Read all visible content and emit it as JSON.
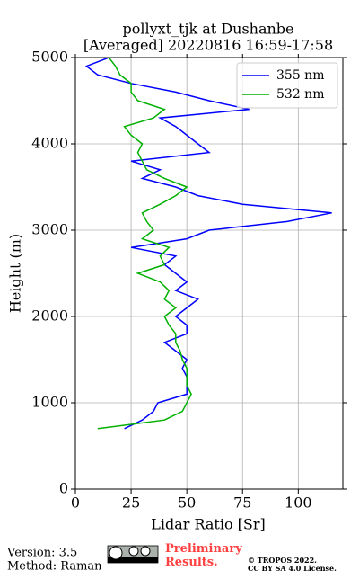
{
  "chart_data": {
    "type": "line",
    "title": "pollyxt_tjk at Dushanbe",
    "subtitle": "[Averaged] 20220816 16:59-17:58",
    "x_label": "Lidar Ratio [Sr]",
    "y_label": "Height (m)",
    "heights": [
      700,
      800,
      900,
      1000,
      1100,
      1200,
      1300,
      1400,
      1500,
      1600,
      1700,
      1800,
      1900,
      2000,
      2100,
      2200,
      2300,
      2400,
      2500,
      2600,
      2700,
      2800,
      2900,
      3000,
      3100,
      3200,
      3300,
      3400,
      3500,
      3600,
      3700,
      3800,
      3900,
      4000,
      4100,
      4200,
      4300,
      4400,
      4500,
      4600,
      4700,
      4800,
      4900,
      5000
    ],
    "series": [
      {
        "name": "355 nm",
        "color": "#0000ff",
        "values": [
          22,
          30,
          35,
          37,
          50,
          50,
          50,
          48,
          50,
          45,
          40,
          50,
          50,
          45,
          50,
          55,
          45,
          50,
          45,
          40,
          45,
          25,
          50,
          60,
          95,
          115,
          75,
          55,
          45,
          30,
          38,
          25,
          60,
          55,
          50,
          45,
          38,
          78,
          60,
          45,
          25,
          10,
          5,
          15
        ]
      },
      {
        "name": "532 nm",
        "color": "#00b000",
        "values": [
          10,
          40,
          48,
          50,
          52,
          50,
          50,
          50,
          48,
          47,
          45,
          45,
          42,
          40,
          45,
          40,
          42,
          38,
          28,
          40,
          38,
          42,
          30,
          35,
          32,
          30,
          38,
          45,
          50,
          40,
          32,
          30,
          28,
          30,
          25,
          22,
          35,
          40,
          28,
          25,
          25,
          20,
          18,
          15
        ]
      }
    ],
    "xlim": [
      0,
      120
    ],
    "xticks": [
      0,
      25,
      50,
      75,
      100
    ],
    "ylim": [
      0,
      5000
    ],
    "yticks": [
      0,
      1000,
      2000,
      3000,
      4000,
      5000
    ],
    "grid": true,
    "legend": "upper right"
  },
  "footer": {
    "version": "Version: 3.5",
    "method": "Method: Raman",
    "notice": "Preliminary Results.",
    "copyright": "© TROPOS 2022.",
    "license": "CC BY SA 4.0 License."
  }
}
